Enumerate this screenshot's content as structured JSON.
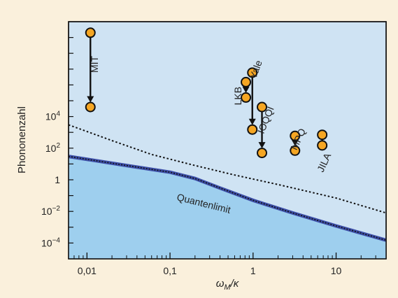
{
  "colors": {
    "background": "#faf0dc",
    "plot_area": "#cfe3f3",
    "quantum_region": "#9ecfee",
    "quantum_line": "#3d4fa8",
    "dotted_line": "#111111",
    "marker_fill": "#f5a623",
    "marker_stroke": "#111111"
  },
  "chart_data": {
    "type": "scatter",
    "xlabel_main": "ω",
    "xlabel_sub": "M",
    "xlabel_rest": "/κ",
    "ylabel": "Phononenzahl",
    "xscale": "log",
    "yscale": "log",
    "xlim": [
      0.006,
      40
    ],
    "ylim": [
      1e-05,
      10000000000
    ],
    "x_ticks": [
      {
        "value": 0.01,
        "label": "0,01"
      },
      {
        "value": 0.1,
        "label": "0,1"
      },
      {
        "value": 1,
        "label": "1"
      },
      {
        "value": 10,
        "label": "10"
      }
    ],
    "y_ticks": [
      {
        "value": 0.0001,
        "base": "10",
        "exp": "−4"
      },
      {
        "value": 0.01,
        "base": "10",
        "exp": "−2"
      },
      {
        "value": 1,
        "base": "1",
        "exp": ""
      },
      {
        "value": 100,
        "base": "10",
        "exp": "2"
      },
      {
        "value": 10000,
        "base": "10",
        "exp": "4"
      }
    ],
    "quantum_limit_label": "Quantenlimit",
    "quantum_limit_curve": [
      {
        "x": 0.006,
        "y": 30
      },
      {
        "x": 0.03,
        "y": 8
      },
      {
        "x": 0.1,
        "y": 3
      },
      {
        "x": 0.2,
        "y": 1.2
      },
      {
        "x": 0.4,
        "y": 0.3
      },
      {
        "x": 1,
        "y": 0.05
      },
      {
        "x": 3,
        "y": 0.008
      },
      {
        "x": 10,
        "y": 0.0012
      },
      {
        "x": 40,
        "y": 0.00015
      }
    ],
    "dotted_curve": [
      {
        "x": 0.006,
        "y": 3000
      },
      {
        "x": 0.02,
        "y": 300
      },
      {
        "x": 0.06,
        "y": 40
      },
      {
        "x": 0.2,
        "y": 8
      },
      {
        "x": 0.6,
        "y": 2
      },
      {
        "x": 2,
        "y": 0.5
      },
      {
        "x": 10,
        "y": 0.07
      },
      {
        "x": 40,
        "y": 0.008
      }
    ],
    "experiments": [
      {
        "label": "MIT",
        "x": 0.011,
        "y_from": 2000000000,
        "y_to": 40000,
        "arrow": true,
        "label_x": 0.0135,
        "label_y": 20000000,
        "label_rotate": -90
      },
      {
        "label": "Yale",
        "x": 0.98,
        "y_from": 6000000,
        "y_to": 1500,
        "arrow": true,
        "label_x": 1.18,
        "label_y": 8000000,
        "label_rotate": -70
      },
      {
        "label": "LKB",
        "x": 0.82,
        "y_from": 1500000,
        "y_to": 160000,
        "arrow": true,
        "label_x": 0.72,
        "label_y": 200000,
        "label_rotate": -90
      },
      {
        "label": "IOQQI",
        "x": 1.28,
        "y_from": 40000,
        "y_to": 50,
        "arrow": true,
        "label_x": 1.55,
        "label_y": 5000,
        "label_rotate": -68
      },
      {
        "label": "MPQ",
        "x": 3.2,
        "y_from": 600,
        "y_to": 70,
        "arrow": true,
        "label_x": 3.8,
        "label_y": 300,
        "label_rotate": -65
      },
      {
        "label": "JILA",
        "x": 6.8,
        "y_from": 700,
        "y_to": 150,
        "arrow": false,
        "label_x": 7.8,
        "label_y": 10,
        "label_rotate": -65
      }
    ]
  }
}
